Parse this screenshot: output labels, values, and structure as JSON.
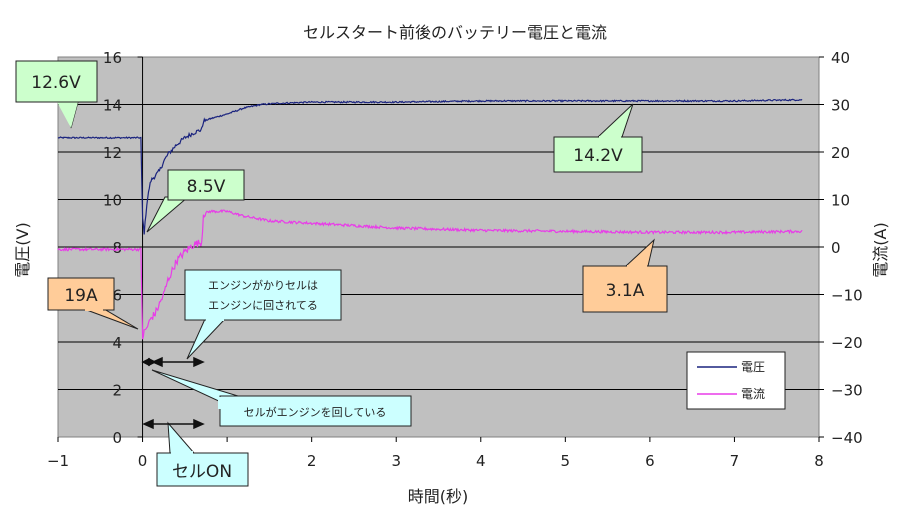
{
  "chart_data": {
    "type": "line",
    "title": "セルスタート前後のバッテリー電圧と電流",
    "xlabel": "時間(秒)",
    "ylabel": "電圧(V)",
    "y2label": "電流(A)",
    "xlim": [
      -1,
      8
    ],
    "ylim": [
      0,
      16
    ],
    "y2lim": [
      -40,
      40
    ],
    "xticks": [
      "−1",
      "0",
      "1",
      "2",
      "3",
      "4",
      "5",
      "6",
      "7",
      "8"
    ],
    "yticks": [
      "0",
      "2",
      "4",
      "6",
      "8",
      "10",
      "12",
      "14",
      "16"
    ],
    "y2ticks": [
      "−40",
      "−30",
      "−20",
      "−10",
      "0",
      "10",
      "20",
      "30",
      "40"
    ],
    "grid": true,
    "legend": {
      "position": "lower-right",
      "entries": [
        "電圧",
        "電流"
      ]
    },
    "colors": {
      "voltage": "#1a237e",
      "current": "#e83ce8",
      "plot_bg": "#c0c0c0"
    },
    "series": [
      {
        "name": "電圧",
        "axis": "left",
        "x": [
          -1,
          -0.5,
          -0.02,
          0.0,
          0.02,
          0.05,
          0.08,
          0.1,
          0.15,
          0.2,
          0.25,
          0.3,
          0.4,
          0.5,
          0.6,
          0.7,
          0.72,
          0.8,
          1.0,
          1.2,
          1.4,
          1.6,
          2.0,
          3.0,
          4.0,
          5.0,
          6.0,
          7.0,
          7.8
        ],
        "values": [
          12.6,
          12.6,
          12.6,
          9.2,
          8.6,
          9.8,
          10.5,
          10.8,
          11.0,
          11.2,
          11.6,
          11.9,
          12.3,
          12.6,
          12.8,
          12.95,
          13.3,
          13.4,
          13.6,
          13.85,
          14.0,
          14.05,
          14.1,
          14.1,
          14.15,
          14.15,
          14.15,
          14.15,
          14.2
        ]
      },
      {
        "name": "電流",
        "axis": "right",
        "x": [
          -1,
          -0.5,
          -0.02,
          0.0,
          0.02,
          0.05,
          0.1,
          0.15,
          0.2,
          0.25,
          0.3,
          0.35,
          0.4,
          0.5,
          0.6,
          0.7,
          0.72,
          0.8,
          1.0,
          1.2,
          1.5,
          2.0,
          3.0,
          4.0,
          5.0,
          6.0,
          7.0,
          7.8
        ],
        "values": [
          -0.5,
          -0.5,
          -0.5,
          -19,
          -18,
          -17,
          -15,
          -14,
          -12,
          -10,
          -7,
          -5,
          -3,
          -1,
          0.5,
          1.0,
          7.0,
          7.5,
          7.5,
          6.5,
          5.5,
          5.0,
          4.0,
          3.5,
          3.3,
          3.1,
          3.1,
          3.3
        ]
      }
    ],
    "annotations": {
      "v_before": "12.6V",
      "v_dip": "8.5V",
      "v_after": "14.2V",
      "i_peak": "19A",
      "i_after": "3.1A",
      "crank_line1": "エンジンがかりセルは",
      "crank_line2": "エンジンに回されてる",
      "cell_turning": "セルがエンジンを回している",
      "cell_on": "セルON"
    }
  }
}
